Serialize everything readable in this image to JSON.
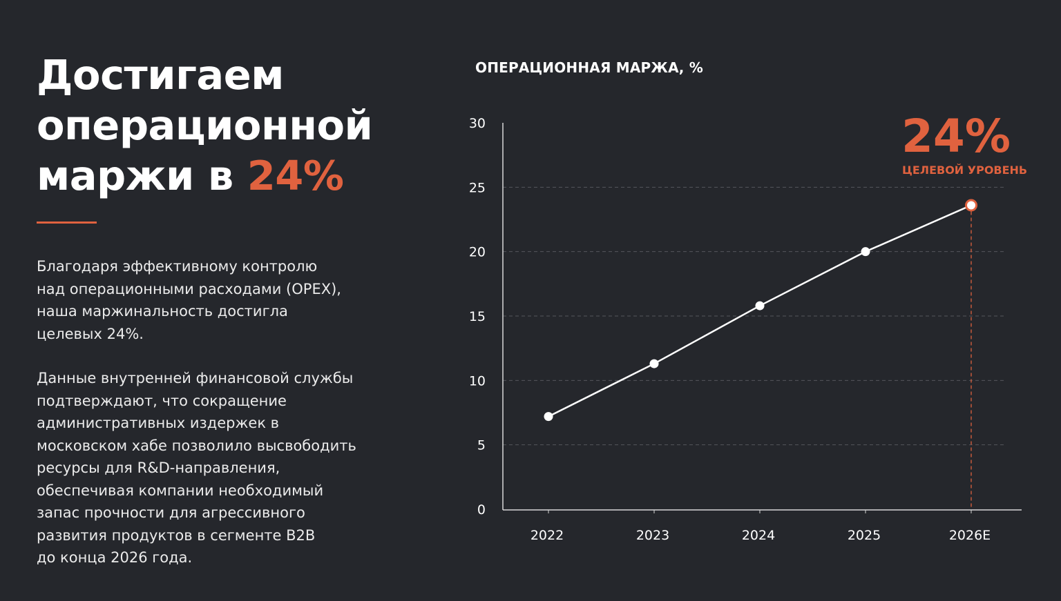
{
  "headline": {
    "line1": "Достигаем",
    "line2": "операционной",
    "line3_prefix": "маржи в ",
    "line3_accent": "24%"
  },
  "paragraphs": [
    "Благодаря эффективному контролю\nнад операционными расходами (OPEX),\nнаша маржинальность достигла\nцелевых 24%.",
    "Данные внутренней финансовой службы\nподтверждают, что сокращение\nадминистративных издержек в\nмосковском хабе позволило высвободить\nресурсы для R&D-направления,\nобеспечивая компании необходимый\nзапас прочности для агрессивного\nразвития продуктов в сегменте B2B\nдо конца 2026 года."
  ],
  "colors": {
    "accent": "#e0623f",
    "background": "#25272c",
    "line": "#ffffff",
    "grid": "#55575c"
  },
  "chart_data": {
    "type": "line",
    "title": "ОПЕРАЦИОННАЯ МАРЖА, %",
    "categories": [
      "2022",
      "2023",
      "2024",
      "2025",
      "2026E"
    ],
    "series": [
      {
        "values": [
          7.2,
          11.3,
          15.8,
          20.0,
          23.6
        ]
      }
    ],
    "ylim": [
      0,
      30
    ],
    "yticks": [
      0,
      5,
      10,
      15,
      20,
      25,
      30
    ],
    "grid": "horizontal dashed",
    "highlight": {
      "category": "2026E",
      "value": 23.6,
      "label_value": "24%",
      "label_text": "ЦЕЛЕВОЙ УРОВЕНЬ"
    }
  }
}
